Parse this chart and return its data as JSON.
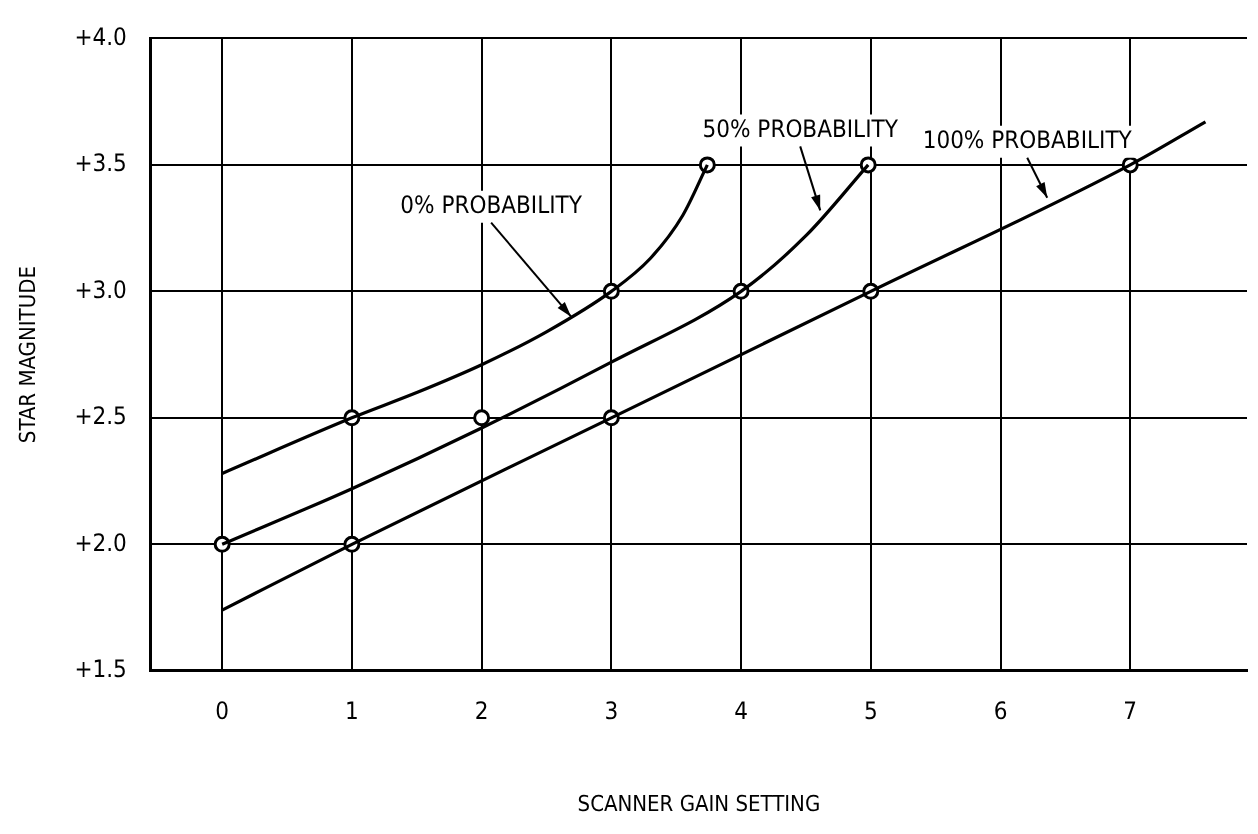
{
  "chart_data": {
    "type": "line",
    "xlabel": "SCANNER GAIN SETTING",
    "ylabel": "STAR MAGNITUDE",
    "xlim": [
      -0.55,
      7.9
    ],
    "xticks": [
      0,
      1,
      2,
      3,
      4,
      5,
      6,
      7
    ],
    "ylim": [
      1.5,
      4.0
    ],
    "yticks": [
      {
        "value": 1.5,
        "label": "+1.5"
      },
      {
        "value": 2.0,
        "label": "+2.0"
      },
      {
        "value": 2.5,
        "label": "+2.5"
      },
      {
        "value": 3.0,
        "label": "+3.0"
      },
      {
        "value": 3.5,
        "label": "+3.5"
      },
      {
        "value": 4.0,
        "label": "+4.0"
      }
    ],
    "grid": true,
    "legend": false,
    "series": [
      {
        "color": "#000000",
        "marker": "none",
        "line_style": "solid",
        "x": [
          0,
          1,
          1.5,
          2,
          2.5,
          3,
          3.3,
          3.55,
          3.74
        ],
        "values": [
          2.28,
          2.5,
          2.6,
          2.71,
          2.84,
          3.0,
          3.13,
          3.3,
          3.5
        ]
      },
      {
        "color": "#000000",
        "marker": "none",
        "line_style": "solid",
        "x": [
          0,
          1,
          2,
          3,
          4,
          4.5,
          4.98
        ],
        "values": [
          2.0,
          2.22,
          2.46,
          2.72,
          3.0,
          3.22,
          3.5
        ]
      },
      {
        "color": "#000000",
        "marker": "none",
        "line_style": "solid",
        "x": [
          0,
          1,
          3,
          5,
          7,
          7.58
        ],
        "values": [
          1.74,
          2.0,
          2.5,
          3.0,
          3.5,
          3.67
        ]
      },
      {
        "type": "scatter",
        "color": "#000000",
        "marker": "circle",
        "x": [
          1,
          3,
          3.74,
          0,
          2,
          4,
          4.98,
          1,
          3,
          5,
          7
        ],
        "values": [
          2.5,
          3.0,
          3.5,
          2.0,
          2.5,
          3.0,
          3.5,
          2.0,
          2.5,
          3.0,
          3.5
        ]
      }
    ],
    "annotations": [
      {
        "text": "0% PROBABILITY",
        "x": 2.69,
        "y": 2.9
      },
      {
        "text": "50% PROBABILITY",
        "x": 4.61,
        "y": 3.32
      },
      {
        "text": "100% PROBABILITY",
        "x": 6.36,
        "y": 3.37
      }
    ]
  }
}
